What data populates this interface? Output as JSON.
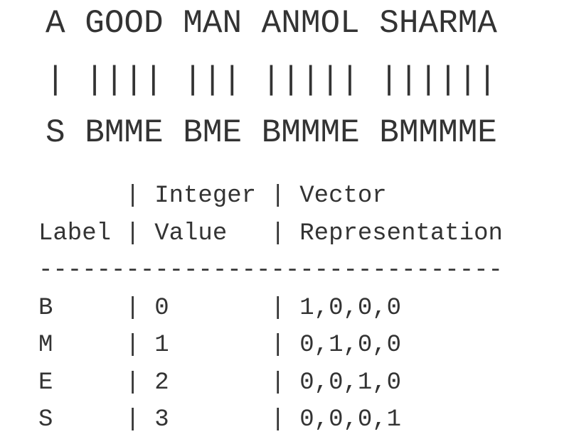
{
  "segmentation": {
    "words_line": "A GOOD MAN ANMOL SHARMA",
    "bars_line": "| |||| ||| ||||| ||||||",
    "tags_line": "S BMME BME BMMME BMMMME"
  },
  "table": {
    "header_line_1": "      | Integer | Vector",
    "header_line_2": "Label | Value   | Representation",
    "separator": "--------------------------------",
    "rows": [
      "B     | 0       | 1,0,0,0",
      "M     | 1       | 0,1,0,0",
      "E     | 2       | 0,0,1,0",
      "S     | 3       | 0,0,0,1"
    ]
  }
}
